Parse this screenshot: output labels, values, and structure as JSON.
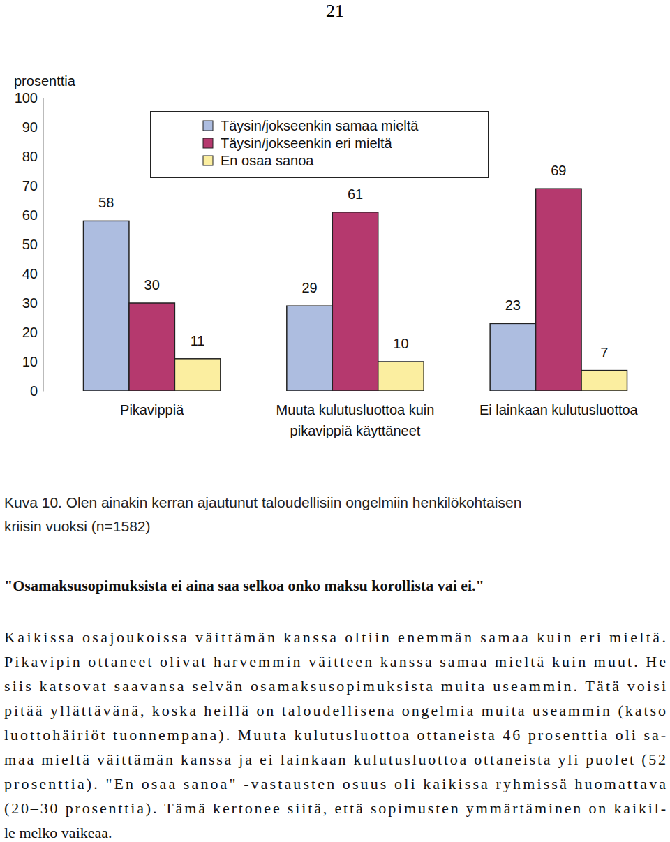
{
  "page_number": 21,
  "chart_data": {
    "type": "bar",
    "y_label": "prosenttia",
    "categories": [
      "Pikavippiä",
      "Muuta kulutusluottoa kuin\npikavippiä käyttäneet",
      "Ei lainkaan kulutusluottoa"
    ],
    "series": [
      {
        "name": "Täysin/jokseenkin samaa mieltä",
        "color": "#adbde0",
        "values": [
          58,
          29,
          23
        ]
      },
      {
        "name": "Täysin/jokseenkin eri mieltä",
        "color": "#b5396e",
        "values": [
          30,
          61,
          69
        ]
      },
      {
        "name": "En osaa sanoa",
        "color": "#fbeea0",
        "values": [
          11,
          10,
          7
        ]
      }
    ],
    "ylim": [
      0,
      100
    ],
    "yticks": [
      0,
      10,
      20,
      30,
      40,
      50,
      60,
      70,
      80,
      90,
      100
    ],
    "legend": "top",
    "data_labels": true
  },
  "caption": [
    "Kuva 10.  Olen ainakin kerran ajautunut taloudellisiin ongelmiin henkilökohtaisen",
    "kriisin vuoksi (n=1582)"
  ],
  "heading": "\"Osamaksusopimuksista ei aina saa selkoa onko maksu korollista vai ei.\"",
  "paragraph": [
    "Kaikissa osajoukoissa väittämän kanssa oltiin enemmän samaa kuin eri mieltä.",
    "Pikavipin ottaneet olivat harvemmin väitteen kanssa samaa mieltä kuin muut. He",
    "siis katsovat saavansa selvän osamaksusopimuksista muita useammin. Tätä voisi",
    "pitää yllättävänä, koska heillä on taloudellisena ongelmia muita useammin (katso",
    "luottohäiriöt tuonnempana). Muuta kulutusluottoa ottaneista 46 prosenttia oli sa-",
    "maa mieltä väittämän kanssa ja ei lainkaan kulutusluottoa ottaneista yli puolet (52",
    "prosenttia). \"En osaa sanoa\" -vastausten osuus oli kaikissa ryhmissä huomattava",
    "(20–30 prosenttia). Tämä kertonee siitä, että sopimusten ymmärtäminen on kaikil-",
    "le melko vaikeaa."
  ]
}
